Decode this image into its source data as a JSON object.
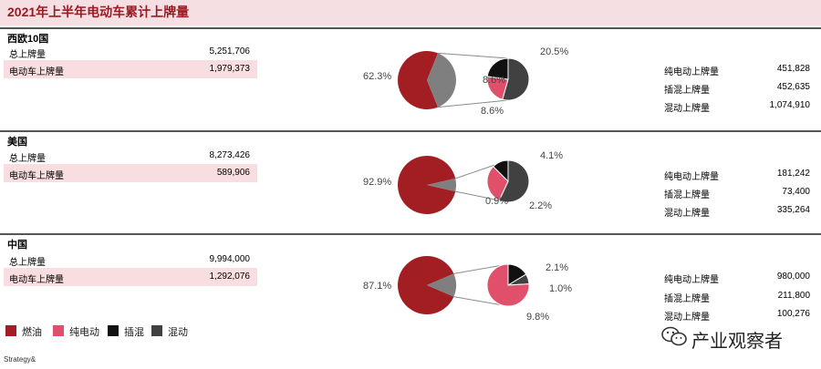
{
  "title": "2021年上半年电动车累计上牌量",
  "colors": {
    "fuel": "#a21e22",
    "bev": "#e0506b",
    "phev": "#111111",
    "hybrid": "#414141",
    "ev_share": "#7f7f7f"
  },
  "legend": [
    {
      "key": "fuel",
      "label": "燃油",
      "color": "#a21e22"
    },
    {
      "key": "bev",
      "label": "纯电动",
      "color": "#e0506b"
    },
    {
      "key": "phev",
      "label": "插混",
      "color": "#111111"
    },
    {
      "key": "hybrid",
      "label": "混动",
      "color": "#414141"
    }
  ],
  "chart_data": [
    {
      "type": "pie",
      "region": "西欧10国",
      "total_label": "总上牌量",
      "total_value": "5,251,706",
      "ev_label": "电动车上牌量",
      "ev_value": "1,979,373",
      "main_pie": {
        "fuel_pct": 62.3,
        "ev_pct": 37.7,
        "label": "62.3%"
      },
      "sub_pie": [
        {
          "key": "hybrid",
          "pct": 20.5,
          "label": "20.5%"
        },
        {
          "key": "bev",
          "pct": 8.6,
          "label": "8.6%"
        },
        {
          "key": "phev",
          "pct": 8.6,
          "label": "8.6%"
        }
      ],
      "breakdown": [
        {
          "label": "纯电动上牌量",
          "value": "451,828"
        },
        {
          "label": "插混上牌量",
          "value": "452,635"
        },
        {
          "label": "混动上牌量",
          "value": "1,074,910"
        }
      ]
    },
    {
      "type": "pie",
      "region": "美国",
      "total_label": "总上牌量",
      "total_value": "8,273,426",
      "ev_label": "电动车上牌量",
      "ev_value": "589,906",
      "main_pie": {
        "fuel_pct": 92.9,
        "ev_pct": 7.1,
        "label": "92.9%"
      },
      "sub_pie": [
        {
          "key": "hybrid",
          "pct": 4.1,
          "label": "4.1%"
        },
        {
          "key": "bev",
          "pct": 2.2,
          "label": "2.2%"
        },
        {
          "key": "phev",
          "pct": 0.9,
          "label": "0.9%"
        }
      ],
      "breakdown": [
        {
          "label": "纯电动上牌量",
          "value": "181,242"
        },
        {
          "label": "插混上牌量",
          "value": "73,400"
        },
        {
          "label": "混动上牌量",
          "value": "335,264"
        }
      ]
    },
    {
      "type": "pie",
      "region": "中国",
      "total_label": "总上牌量",
      "total_value": "9,994,000",
      "ev_label": "电动车上牌量",
      "ev_value": "1,292,076",
      "main_pie": {
        "fuel_pct": 87.1,
        "ev_pct": 12.9,
        "label": "87.1%"
      },
      "sub_pie": [
        {
          "key": "phev",
          "pct": 2.1,
          "label": "2.1%"
        },
        {
          "key": "hybrid",
          "pct": 1.0,
          "label": "1.0%"
        },
        {
          "key": "bev",
          "pct": 9.8,
          "label": "9.8%"
        }
      ],
      "breakdown": [
        {
          "label": "纯电动上牌量",
          "value": "980,000"
        },
        {
          "label": "插混上牌量",
          "value": "211,800"
        },
        {
          "label": "混动上牌量",
          "value": "100,276"
        }
      ]
    }
  ],
  "footer": "Strategy&",
  "watermark": {
    "text": "产业观察者",
    "icon": "wechat-icon"
  }
}
